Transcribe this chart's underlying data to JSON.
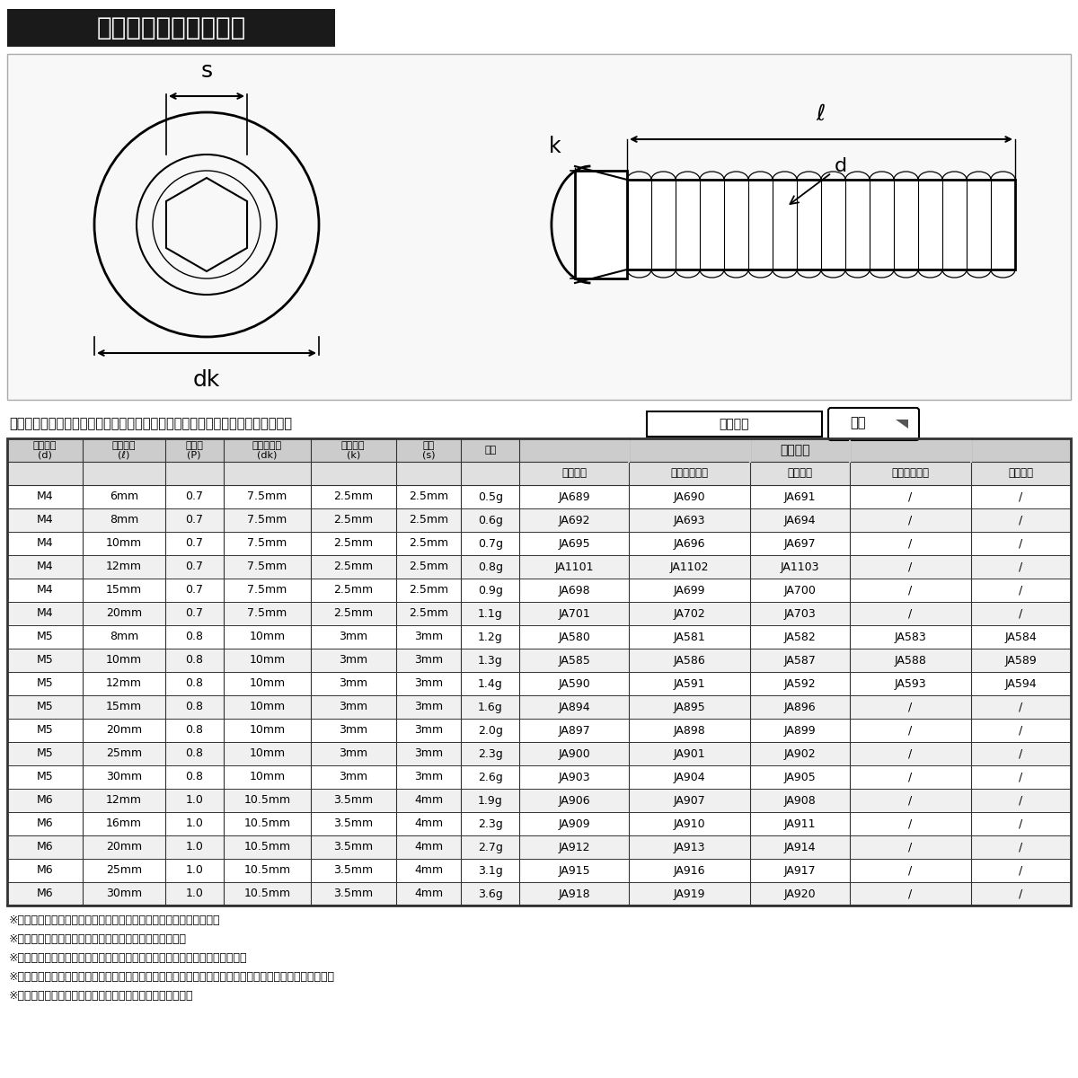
{
  "title": "ラインアップ＆サイズ",
  "search_text": "ストア内検索に商品番号を入力するとお探しの商品に素早くアクセスできます。",
  "search_label": "商品番号",
  "search_button": "検索",
  "col_headers_product": [
    "シルバー",
    "ライトカラー",
    "ゴールド",
    "ダークカラー",
    "ブラック"
  ],
  "rows": [
    [
      "M4",
      "6mm",
      "0.7",
      "7.5mm",
      "2.5mm",
      "2.5mm",
      "0.5g",
      "JA689",
      "JA690",
      "JA691",
      "/",
      "/"
    ],
    [
      "M4",
      "8mm",
      "0.7",
      "7.5mm",
      "2.5mm",
      "2.5mm",
      "0.6g",
      "JA692",
      "JA693",
      "JA694",
      "/",
      "/"
    ],
    [
      "M4",
      "10mm",
      "0.7",
      "7.5mm",
      "2.5mm",
      "2.5mm",
      "0.7g",
      "JA695",
      "JA696",
      "JA697",
      "/",
      "/"
    ],
    [
      "M4",
      "12mm",
      "0.7",
      "7.5mm",
      "2.5mm",
      "2.5mm",
      "0.8g",
      "JA1101",
      "JA1102",
      "JA1103",
      "/",
      "/"
    ],
    [
      "M4",
      "15mm",
      "0.7",
      "7.5mm",
      "2.5mm",
      "2.5mm",
      "0.9g",
      "JA698",
      "JA699",
      "JA700",
      "/",
      "/"
    ],
    [
      "M4",
      "20mm",
      "0.7",
      "7.5mm",
      "2.5mm",
      "2.5mm",
      "1.1g",
      "JA701",
      "JA702",
      "JA703",
      "/",
      "/"
    ],
    [
      "M5",
      "8mm",
      "0.8",
      "10mm",
      "3mm",
      "3mm",
      "1.2g",
      "JA580",
      "JA581",
      "JA582",
      "JA583",
      "JA584"
    ],
    [
      "M5",
      "10mm",
      "0.8",
      "10mm",
      "3mm",
      "3mm",
      "1.3g",
      "JA585",
      "JA586",
      "JA587",
      "JA588",
      "JA589"
    ],
    [
      "M5",
      "12mm",
      "0.8",
      "10mm",
      "3mm",
      "3mm",
      "1.4g",
      "JA590",
      "JA591",
      "JA592",
      "JA593",
      "JA594"
    ],
    [
      "M5",
      "15mm",
      "0.8",
      "10mm",
      "3mm",
      "3mm",
      "1.6g",
      "JA894",
      "JA895",
      "JA896",
      "/",
      "/"
    ],
    [
      "M5",
      "20mm",
      "0.8",
      "10mm",
      "3mm",
      "3mm",
      "2.0g",
      "JA897",
      "JA898",
      "JA899",
      "/",
      "/"
    ],
    [
      "M5",
      "25mm",
      "0.8",
      "10mm",
      "3mm",
      "3mm",
      "2.3g",
      "JA900",
      "JA901",
      "JA902",
      "/",
      "/"
    ],
    [
      "M5",
      "30mm",
      "0.8",
      "10mm",
      "3mm",
      "3mm",
      "2.6g",
      "JA903",
      "JA904",
      "JA905",
      "/",
      "/"
    ],
    [
      "M6",
      "12mm",
      "1.0",
      "10.5mm",
      "3.5mm",
      "4mm",
      "1.9g",
      "JA906",
      "JA907",
      "JA908",
      "/",
      "/"
    ],
    [
      "M6",
      "16mm",
      "1.0",
      "10.5mm",
      "3.5mm",
      "4mm",
      "2.3g",
      "JA909",
      "JA910",
      "JA911",
      "/",
      "/"
    ],
    [
      "M6",
      "20mm",
      "1.0",
      "10.5mm",
      "3.5mm",
      "4mm",
      "2.7g",
      "JA912",
      "JA913",
      "JA914",
      "/",
      "/"
    ],
    [
      "M6",
      "25mm",
      "1.0",
      "10.5mm",
      "3.5mm",
      "4mm",
      "3.1g",
      "JA915",
      "JA916",
      "JA917",
      "/",
      "/"
    ],
    [
      "M6",
      "30mm",
      "1.0",
      "10.5mm",
      "3.5mm",
      "4mm",
      "3.6g",
      "JA918",
      "JA919",
      "JA920",
      "/",
      "/"
    ]
  ],
  "notes": [
    "※記載のサイズ・重量は平均値です。個体により誤差がございます。",
    "※カラーは個体差により着色が異なる場合がございます。",
    "※製造ロットにより告知なしで記載のサイズが若干変わる場合がございます。",
    "※チタンはカジリ（焼き付き）を起こしやすい材質です。焼き付け防止ケミカル剤の併用をお勧めします。",
    "※ご注文確定後のサイズ・カラー等のご変更は出来ません。"
  ],
  "bg_color": "#ffffff",
  "title_bg": "#1a1a1a",
  "title_fg": "#ffffff",
  "header_bg": "#cccccc",
  "subheader_bg": "#e0e0e0",
  "row_alt_bg": "#f0f0f0",
  "row_bg": "#ffffff",
  "border_color": "#333333",
  "text_color": "#000000",
  "diagram_bg": "#f8f8f8"
}
